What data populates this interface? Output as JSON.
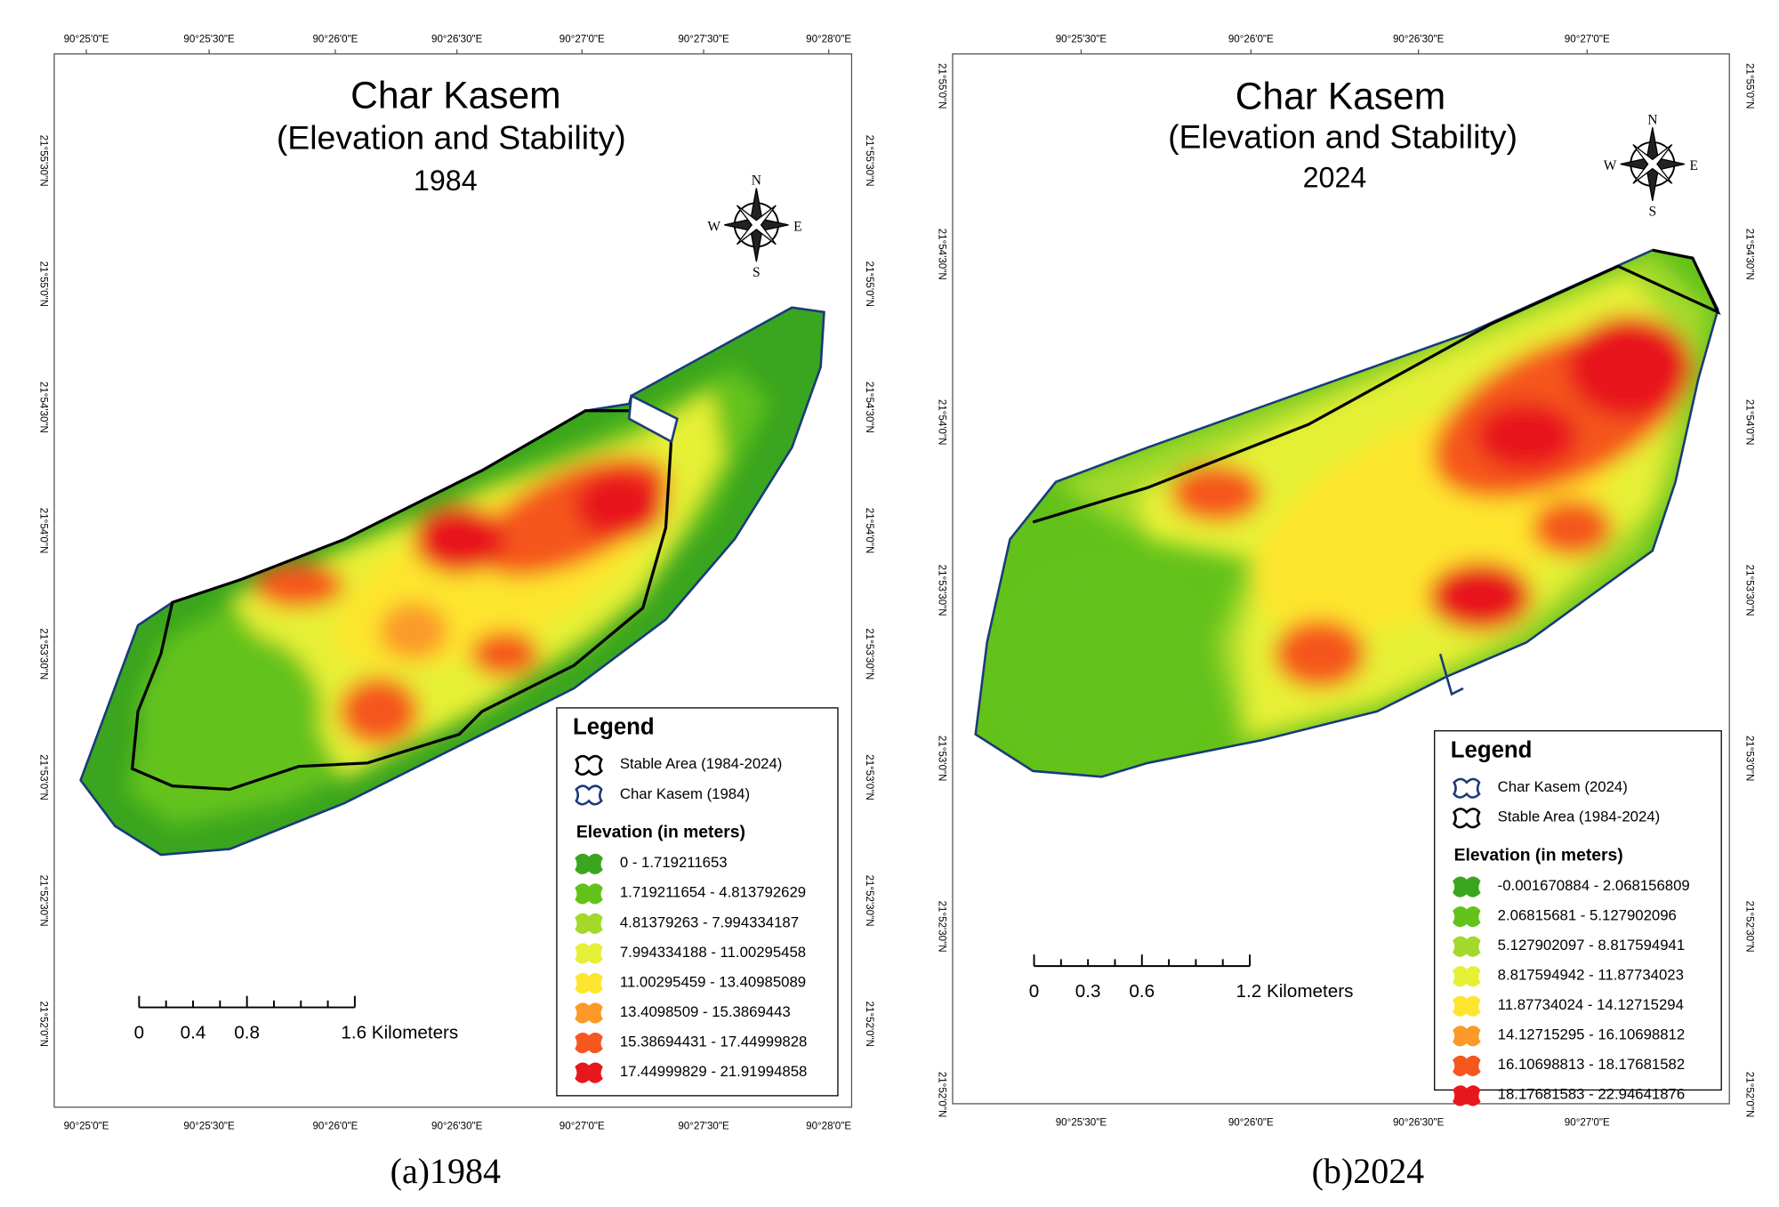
{
  "panels": [
    {
      "title": "Char Kasem",
      "subtitle": "(Elevation and Stability)",
      "year": "1984",
      "lon_labels": [
        "90°25'0\"E",
        "90°25'30\"E",
        "90°26'0\"E",
        "90°26'30\"E",
        "90°27'0\"E",
        "90°27'30\"E",
        "90°28'0\"E"
      ],
      "lat_labels": [
        "21°55'30\"N",
        "21°55'0\"N",
        "21°54'30\"N",
        "21°54'0\"N",
        "21°53'30\"N",
        "21°53'0\"N",
        "21°52'30\"N",
        "21°52'0\"N"
      ],
      "compass": {
        "n": "N",
        "e": "E",
        "s": "S",
        "w": "W"
      },
      "legend": {
        "title": "Legend",
        "boundaries": [
          "Stable Area (1984-2024)",
          "Char Kasem (1984)"
        ],
        "elevation_title": "Elevation (in meters)",
        "classes": [
          "0 - 1.719211653",
          "1.719211654 - 4.813792629",
          "4.81379263 - 7.994334187",
          "7.994334188 - 11.00295458",
          "11.00295459 - 13.40985089",
          "13.4098509 - 15.3869443",
          "15.38694431 - 17.44999828",
          "17.44999829 - 21.91994858"
        ]
      },
      "scale_bar": [
        "0",
        "0.4",
        "0.8",
        "1.6 Kilometers"
      ],
      "caption": "(a)1984"
    },
    {
      "title": "Char Kasem",
      "subtitle": "(Elevation and Stability)",
      "year": "2024",
      "lon_labels": [
        "90°25'30\"E",
        "90°26'0\"E",
        "90°26'30\"E",
        "90°27'0\"E"
      ],
      "lat_labels": [
        "21°55'0\"N",
        "21°54'30\"N",
        "21°54'0\"N",
        "21°53'30\"N",
        "21°53'0\"N",
        "21°52'30\"N",
        "21°52'0\"N"
      ],
      "compass": {
        "n": "N",
        "e": "E",
        "s": "S",
        "w": "W"
      },
      "legend": {
        "title": "Legend",
        "boundaries": [
          "Char Kasem (2024)",
          "Stable Area (1984-2024)"
        ],
        "elevation_title": "Elevation (in meters)",
        "classes": [
          "-0.001670884 - 2.068156809",
          "2.06815681 - 5.127902096",
          "5.127902097 - 8.817594941",
          "8.817594942 - 11.87734023",
          "11.87734024 - 14.12715294",
          "14.12715295 - 16.10698812",
          "16.10698813 - 18.17681582",
          "18.17681583 - 22.94641876"
        ]
      },
      "scale_bar": [
        "0",
        "0.3",
        "0.6",
        "1.2 Kilometers"
      ],
      "caption": "(b)2024"
    }
  ]
}
